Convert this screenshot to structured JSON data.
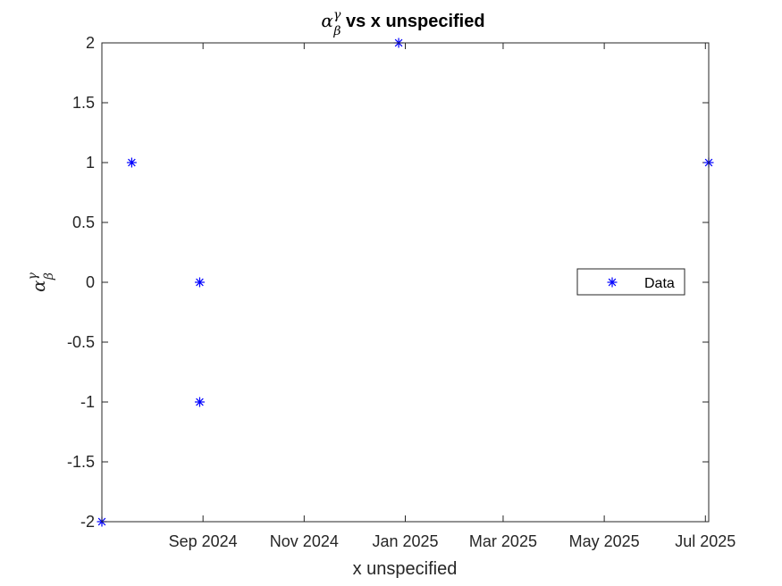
{
  "chart_data": {
    "type": "scatter",
    "title": {
      "symbol": "α",
      "sup": "γ",
      "sub": "β",
      "suffix": " vs x unspecified"
    },
    "xlabel": "x unspecified",
    "ylabel": {
      "symbol": "α",
      "sup": "γ",
      "sub": "β"
    },
    "x_type": "date",
    "xlim": [
      "2024-07-02",
      "2025-07-03"
    ],
    "ylim": [
      -2,
      2
    ],
    "x_ticks": [
      {
        "date": "2024-09-01",
        "label": "Sep 2024"
      },
      {
        "date": "2024-11-01",
        "label": "Nov 2024"
      },
      {
        "date": "2025-01-01",
        "label": "Jan 2025"
      },
      {
        "date": "2025-03-01",
        "label": "Mar 2025"
      },
      {
        "date": "2025-05-01",
        "label": "May 2025"
      },
      {
        "date": "2025-07-01",
        "label": "Jul 2025"
      }
    ],
    "y_ticks": [
      {
        "value": 2,
        "label": "2"
      },
      {
        "value": 1.5,
        "label": "1.5"
      },
      {
        "value": 1,
        "label": "1"
      },
      {
        "value": 0.5,
        "label": "0.5"
      },
      {
        "value": 0,
        "label": "0"
      },
      {
        "value": -0.5,
        "label": "-0.5"
      },
      {
        "value": -1,
        "label": "-1"
      },
      {
        "value": -1.5,
        "label": "-1.5"
      },
      {
        "value": -2,
        "label": "-2"
      }
    ],
    "grid": false,
    "legend": {
      "position": "right",
      "entries": [
        {
          "label": "Data",
          "marker": "asterisk",
          "color": "#0000ff"
        }
      ]
    },
    "series": [
      {
        "name": "Data",
        "marker": "asterisk",
        "color": "#0000ff",
        "points": [
          {
            "x": "2024-07-02",
            "y": -2
          },
          {
            "x": "2024-07-20",
            "y": 1
          },
          {
            "x": "2024-08-30",
            "y": 0
          },
          {
            "x": "2024-08-30",
            "y": -1
          },
          {
            "x": "2024-12-28",
            "y": 2
          },
          {
            "x": "2025-07-03",
            "y": 1
          }
        ]
      }
    ]
  }
}
